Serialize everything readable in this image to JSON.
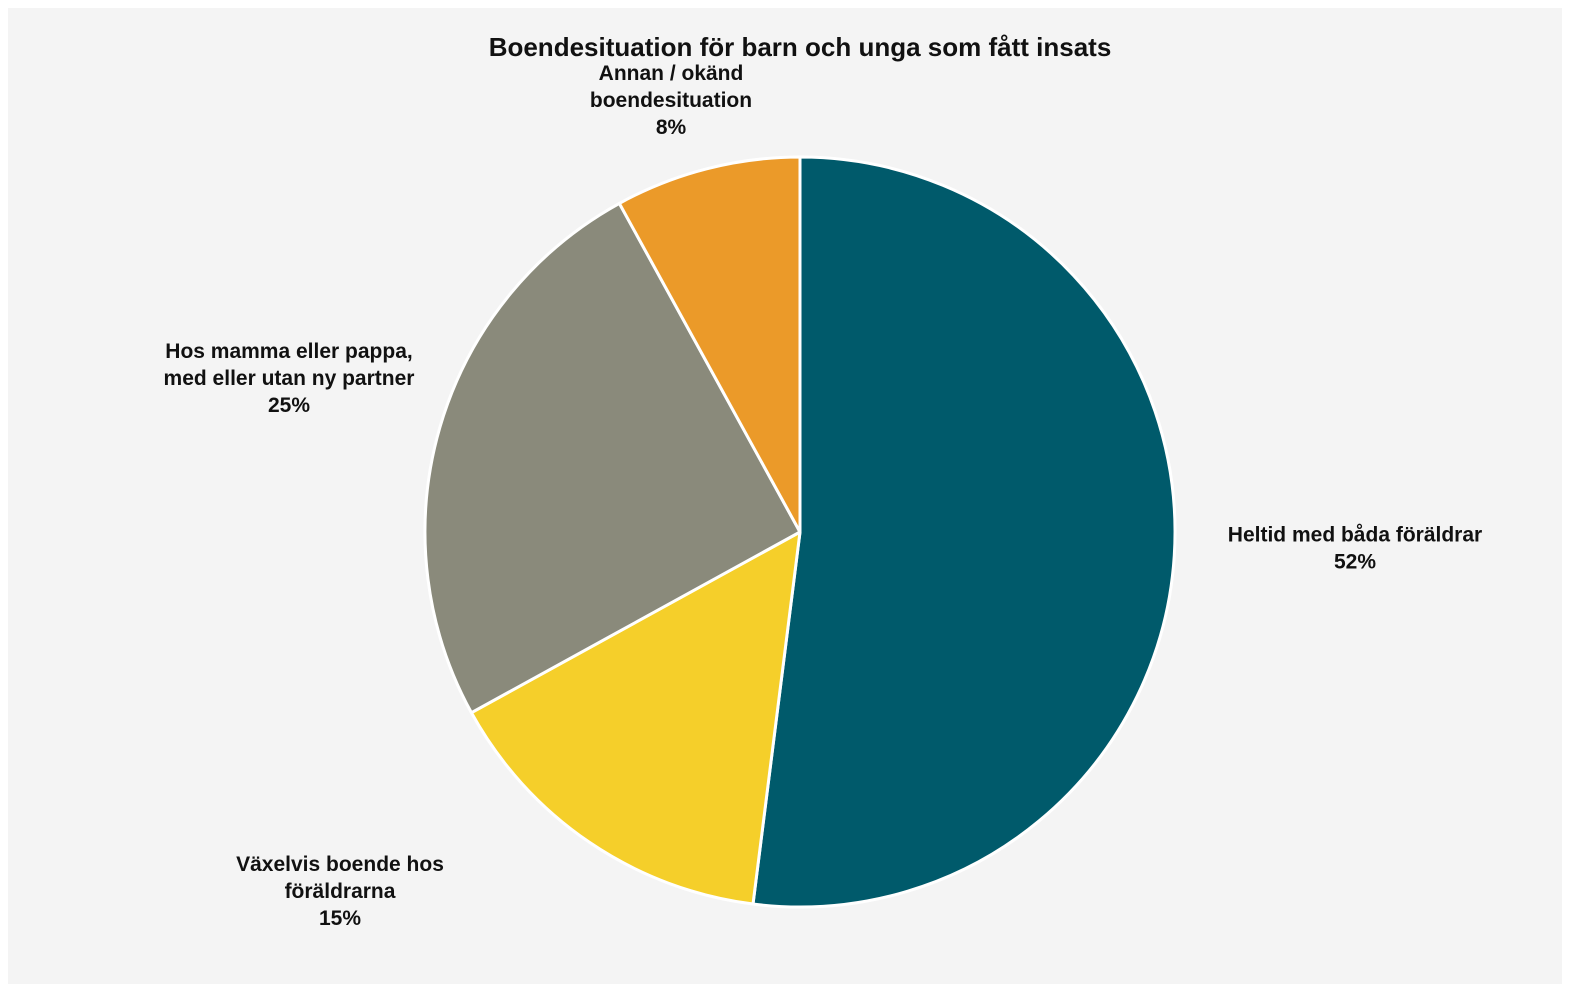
{
  "chart_data": {
    "type": "pie",
    "title": "Boendesituation för barn och unga som fått insats",
    "start": "12 o'clock",
    "direction": "clockwise",
    "slices": [
      {
        "label_lines": [
          "Heltid med båda föräldrar"
        ],
        "value": 52,
        "value_label": "52%",
        "color": "#005a6b"
      },
      {
        "label_lines": [
          "Växelvis boende hos",
          "föräldrarna"
        ],
        "value": 15,
        "value_label": "15%",
        "color": "#f5cf2a"
      },
      {
        "label_lines": [
          "Hos mamma eller pappa,",
          "med eller utan ny partner"
        ],
        "value": 25,
        "value_label": "25%",
        "color": "#8a8a7b"
      },
      {
        "label_lines": [
          "Annan / okänd",
          "boendesituation"
        ],
        "value": 8,
        "value_label": "8%",
        "color": "#eb9a29"
      }
    ]
  }
}
